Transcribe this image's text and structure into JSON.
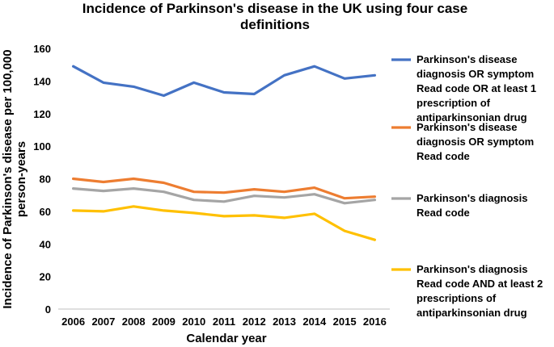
{
  "chart_data": {
    "type": "line",
    "title": [
      "Incidence of Parkinson's disease in the UK using four case",
      "definitions"
    ],
    "xlabel": "Calendar year",
    "ylabel": [
      "Incidence of Parkinson's disease per 100,000",
      "person-years"
    ],
    "ylim": [
      0,
      160
    ],
    "yticks": [
      0,
      20,
      40,
      60,
      80,
      100,
      120,
      140,
      160
    ],
    "grid": false,
    "legend_position": "right",
    "categories": [
      "2006",
      "2007",
      "2008",
      "2009",
      "2010",
      "2011",
      "2012",
      "2013",
      "2014",
      "2015",
      "2016"
    ],
    "series": [
      {
        "name": [
          "Parkinson's disease",
          "diagnosis OR symptom",
          "Read code OR at least 1",
          "prescription of",
          "antiparkinsonian drug"
        ],
        "color": "#4472C4",
        "values": [
          149,
          139,
          136.5,
          131,
          139,
          133,
          132,
          143.5,
          149,
          141.5,
          143.5
        ]
      },
      {
        "name": [
          "Parkinson's disease",
          "diagnosis OR symptom",
          "Read code"
        ],
        "color": "#ED7D31",
        "values": [
          80,
          78,
          80,
          77.5,
          72,
          71.5,
          73.5,
          72,
          74.5,
          68,
          69
        ]
      },
      {
        "name": [
          "Parkinson's diagnosis",
          "Read code"
        ],
        "color": "#A5A5A5",
        "values": [
          74,
          72.5,
          74,
          72,
          67,
          66,
          69.5,
          68.5,
          70.5,
          65,
          67
        ]
      },
      {
        "name": [
          "Parkinson's diagnosis",
          "Read code AND at least 2",
          "prescriptions of",
          "antiparkinsonian drug"
        ],
        "color": "#FFC000",
        "values": [
          60.5,
          60,
          63,
          60.5,
          59,
          57,
          57.5,
          56,
          58.5,
          48,
          42.5
        ]
      }
    ]
  }
}
